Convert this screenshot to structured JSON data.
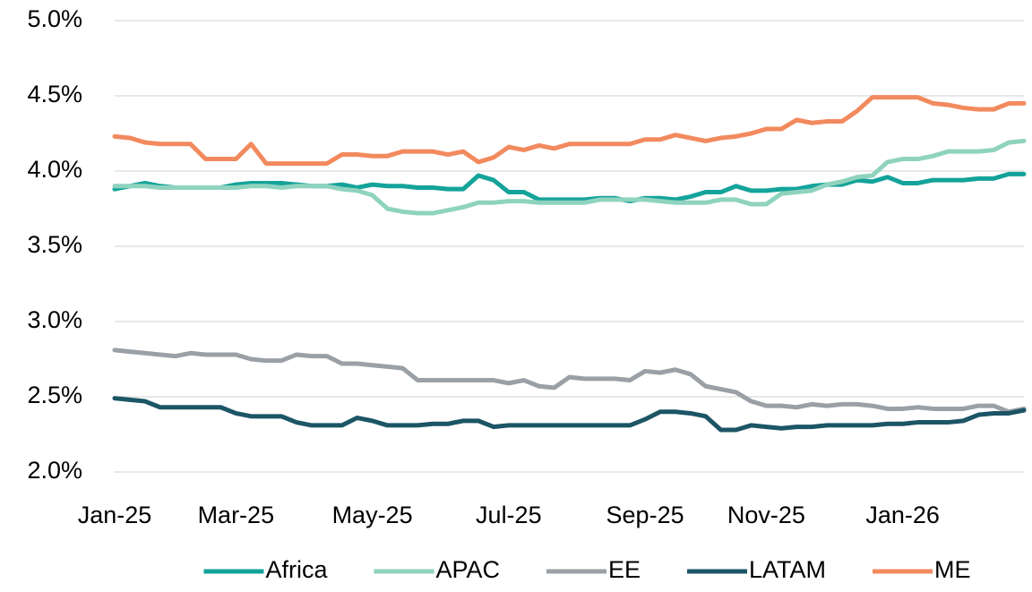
{
  "chart_data": {
    "type": "line",
    "categories": [
      "Jan-25",
      null,
      null,
      null,
      null,
      null,
      null,
      null,
      "Mar-25",
      null,
      null,
      null,
      null,
      null,
      null,
      null,
      null,
      "May-25",
      null,
      null,
      null,
      null,
      null,
      null,
      null,
      null,
      "Jul-25",
      null,
      null,
      null,
      null,
      null,
      null,
      null,
      null,
      "Sep-25",
      null,
      null,
      null,
      null,
      null,
      null,
      null,
      "Nov-25",
      null,
      null,
      null,
      null,
      null,
      null,
      null,
      null,
      "Jan-26",
      null,
      null,
      null,
      null,
      null,
      null,
      null,
      null
    ],
    "series": [
      {
        "name": "Africa",
        "color": "#14a39a",
        "values": [
          3.88,
          3.9,
          3.92,
          3.9,
          3.89,
          3.89,
          3.89,
          3.89,
          3.91,
          3.92,
          3.92,
          3.92,
          3.91,
          3.9,
          3.9,
          3.91,
          3.89,
          3.91,
          3.9,
          3.9,
          3.89,
          3.89,
          3.88,
          3.88,
          3.97,
          3.94,
          3.86,
          3.86,
          3.81,
          3.81,
          3.81,
          3.81,
          3.82,
          3.82,
          3.8,
          3.82,
          3.82,
          3.81,
          3.83,
          3.86,
          3.86,
          3.9,
          3.87,
          3.87,
          3.88,
          3.88,
          3.9,
          3.91,
          3.91,
          3.94,
          3.93,
          3.96,
          3.92,
          3.92,
          3.94,
          3.94,
          3.94,
          3.95,
          3.95,
          3.98,
          3.98
        ]
      },
      {
        "name": "APAC",
        "color": "#8fd3bf",
        "values": [
          3.9,
          3.9,
          3.9,
          3.89,
          3.89,
          3.89,
          3.89,
          3.89,
          3.89,
          3.9,
          3.9,
          3.89,
          3.9,
          3.9,
          3.9,
          3.88,
          3.87,
          3.84,
          3.75,
          3.73,
          3.72,
          3.72,
          3.74,
          3.76,
          3.79,
          3.79,
          3.8,
          3.8,
          3.79,
          3.79,
          3.79,
          3.79,
          3.81,
          3.81,
          3.81,
          3.81,
          3.8,
          3.79,
          3.79,
          3.79,
          3.81,
          3.81,
          3.78,
          3.78,
          3.85,
          3.86,
          3.87,
          3.91,
          3.93,
          3.96,
          3.97,
          4.06,
          4.08,
          4.08,
          4.1,
          4.13,
          4.13,
          4.13,
          4.14,
          4.19,
          4.2
        ]
      },
      {
        "name": "EE",
        "color": "#9aa0a6",
        "values": [
          2.81,
          2.8,
          2.79,
          2.78,
          2.77,
          2.79,
          2.78,
          2.78,
          2.78,
          2.75,
          2.74,
          2.74,
          2.78,
          2.77,
          2.77,
          2.72,
          2.72,
          2.71,
          2.7,
          2.69,
          2.61,
          2.61,
          2.61,
          2.61,
          2.61,
          2.61,
          2.59,
          2.61,
          2.57,
          2.56,
          2.63,
          2.62,
          2.62,
          2.62,
          2.61,
          2.67,
          2.66,
          2.68,
          2.65,
          2.57,
          2.55,
          2.53,
          2.47,
          2.44,
          2.44,
          2.43,
          2.45,
          2.44,
          2.45,
          2.45,
          2.44,
          2.42,
          2.42,
          2.43,
          2.42,
          2.42,
          2.42,
          2.44,
          2.44,
          2.4,
          2.42
        ]
      },
      {
        "name": "LATAM",
        "color": "#1c5566",
        "values": [
          2.49,
          2.48,
          2.47,
          2.43,
          2.43,
          2.43,
          2.43,
          2.43,
          2.39,
          2.37,
          2.37,
          2.37,
          2.33,
          2.31,
          2.31,
          2.31,
          2.36,
          2.34,
          2.31,
          2.31,
          2.31,
          2.32,
          2.32,
          2.34,
          2.34,
          2.3,
          2.31,
          2.31,
          2.31,
          2.31,
          2.31,
          2.31,
          2.31,
          2.31,
          2.31,
          2.35,
          2.4,
          2.4,
          2.39,
          2.37,
          2.28,
          2.28,
          2.31,
          2.3,
          2.29,
          2.3,
          2.3,
          2.31,
          2.31,
          2.31,
          2.31,
          2.32,
          2.32,
          2.33,
          2.33,
          2.33,
          2.34,
          2.38,
          2.39,
          2.39,
          2.41
        ]
      },
      {
        "name": "ME",
        "color": "#f28a5e",
        "values": [
          4.23,
          4.22,
          4.19,
          4.18,
          4.18,
          4.18,
          4.08,
          4.08,
          4.08,
          4.18,
          4.05,
          4.05,
          4.05,
          4.05,
          4.05,
          4.11,
          4.11,
          4.1,
          4.1,
          4.13,
          4.13,
          4.13,
          4.11,
          4.13,
          4.06,
          4.09,
          4.16,
          4.14,
          4.17,
          4.15,
          4.18,
          4.18,
          4.18,
          4.18,
          4.18,
          4.21,
          4.21,
          4.24,
          4.22,
          4.2,
          4.22,
          4.23,
          4.25,
          4.28,
          4.28,
          4.34,
          4.32,
          4.33,
          4.33,
          4.4,
          4.49,
          4.49,
          4.49,
          4.49,
          4.45,
          4.44,
          4.42,
          4.41,
          4.41,
          4.45,
          4.45
        ]
      }
    ],
    "ylim": [
      2.0,
      5.0
    ],
    "yticks": [
      {
        "value": 2.0,
        "label": "2.0%"
      },
      {
        "value": 2.5,
        "label": "2.5%"
      },
      {
        "value": 3.0,
        "label": "3.0%"
      },
      {
        "value": 3.5,
        "label": "3.5%"
      },
      {
        "value": 4.0,
        "label": "4.0%"
      },
      {
        "value": 4.5,
        "label": "4.5%"
      },
      {
        "value": 5.0,
        "label": "5.0%"
      }
    ],
    "grid": true,
    "legend": "bottom"
  }
}
